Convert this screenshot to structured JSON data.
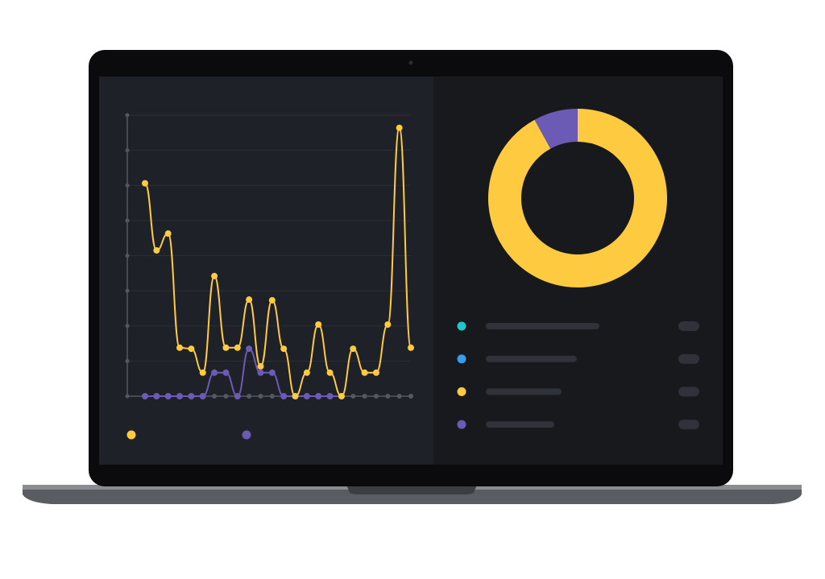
{
  "chart_data": [
    {
      "type": "line",
      "categories": [
        null,
        null,
        null,
        null,
        null,
        null,
        null,
        null,
        null,
        null,
        null,
        null,
        null,
        null,
        null,
        null,
        null,
        null,
        null,
        null,
        null,
        null,
        null,
        null
      ],
      "series": [
        {
          "color": "#fdca40",
          "values": [
            6.06,
            4.15,
            4.63,
            1.38,
            1.35,
            0.67,
            3.42,
            1.38,
            1.38,
            2.75,
            0.85,
            2.73,
            1.35,
            0,
            0.67,
            2.04,
            0.67,
            0,
            1.35,
            0.67,
            0.67,
            2.04,
            7.64,
            1.38
          ]
        },
        {
          "color": "#6c5bb5",
          "values": [
            0,
            0,
            0,
            0,
            0,
            0,
            0.67,
            0.67,
            0,
            1.35,
            0.67,
            0.67,
            0,
            0,
            0,
            0,
            0,
            0,
            null,
            null,
            null,
            null,
            null,
            null
          ]
        }
      ],
      "ylim": [
        0,
        8
      ],
      "yticks": [
        0,
        1,
        2,
        3,
        4,
        5,
        6,
        7,
        8
      ],
      "grid": true
    },
    {
      "type": "donut",
      "values": [
        0,
        0,
        92,
        8
      ],
      "colors": [
        "#1ec8c8",
        "#3a9be8",
        "#fdca40",
        "#6c5bb5"
      ]
    }
  ]
}
